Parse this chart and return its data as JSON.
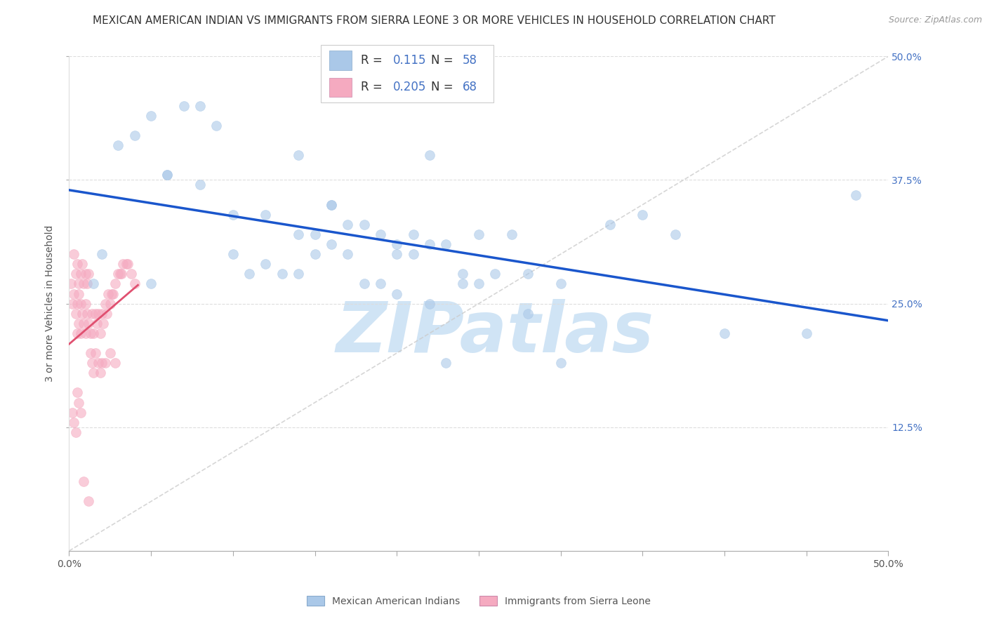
{
  "title": "MEXICAN AMERICAN INDIAN VS IMMIGRANTS FROM SIERRA LEONE 3 OR MORE VEHICLES IN HOUSEHOLD CORRELATION CHART",
  "source": "Source: ZipAtlas.com",
  "ylabel": "3 or more Vehicles in Household",
  "blue_R": "0.115",
  "blue_N": "58",
  "pink_R": "0.205",
  "pink_N": "68",
  "blue_color": "#aac8e8",
  "pink_color": "#f5aac0",
  "blue_line_color": "#1a56cc",
  "pink_line_color": "#e05070",
  "diag_line_color": "#cccccc",
  "watermark_text": "ZIPatlas",
  "watermark_color": "#d0e4f5",
  "legend_labels": [
    "Mexican American Indians",
    "Immigrants from Sierra Leone"
  ],
  "grid_color": "#dddddd",
  "title_color": "#333333",
  "source_color": "#999999",
  "ylabel_color": "#555555",
  "tick_color": "#555555",
  "right_tick_color": "#4472c4",
  "title_fontsize": 11,
  "source_fontsize": 9,
  "axis_label_fontsize": 10,
  "tick_fontsize": 10,
  "legend_fontsize": 12,
  "watermark_fontsize": 72,
  "scatter_size": 100,
  "scatter_alpha": 0.6,
  "blue_x": [
    0.015,
    0.02,
    0.03,
    0.04,
    0.05,
    0.06,
    0.07,
    0.08,
    0.09,
    0.1,
    0.11,
    0.12,
    0.13,
    0.14,
    0.15,
    0.16,
    0.17,
    0.18,
    0.19,
    0.2,
    0.21,
    0.22,
    0.23,
    0.24,
    0.25,
    0.27,
    0.28,
    0.3,
    0.33,
    0.35,
    0.37,
    0.4,
    0.45,
    0.48,
    0.05,
    0.06,
    0.08,
    0.1,
    0.12,
    0.14,
    0.16,
    0.18,
    0.2,
    0.22,
    0.24,
    0.26,
    0.28,
    0.3,
    0.22,
    0.23,
    0.14,
    0.15,
    0.16,
    0.17,
    0.19,
    0.2,
    0.21,
    0.25
  ],
  "blue_y": [
    0.27,
    0.3,
    0.41,
    0.42,
    0.44,
    0.38,
    0.45,
    0.45,
    0.43,
    0.3,
    0.28,
    0.29,
    0.28,
    0.28,
    0.3,
    0.31,
    0.33,
    0.27,
    0.32,
    0.31,
    0.3,
    0.31,
    0.31,
    0.28,
    0.27,
    0.32,
    0.24,
    0.27,
    0.33,
    0.34,
    0.32,
    0.22,
    0.22,
    0.36,
    0.27,
    0.38,
    0.37,
    0.34,
    0.34,
    0.4,
    0.35,
    0.33,
    0.3,
    0.4,
    0.27,
    0.28,
    0.28,
    0.19,
    0.25,
    0.19,
    0.32,
    0.32,
    0.35,
    0.3,
    0.27,
    0.26,
    0.32,
    0.32
  ],
  "pink_x": [
    0.001,
    0.002,
    0.003,
    0.004,
    0.005,
    0.005,
    0.006,
    0.006,
    0.007,
    0.007,
    0.008,
    0.009,
    0.01,
    0.01,
    0.011,
    0.012,
    0.013,
    0.014,
    0.015,
    0.016,
    0.017,
    0.018,
    0.019,
    0.02,
    0.021,
    0.022,
    0.023,
    0.024,
    0.025,
    0.026,
    0.027,
    0.028,
    0.03,
    0.031,
    0.032,
    0.033,
    0.035,
    0.036,
    0.038,
    0.04,
    0.003,
    0.004,
    0.005,
    0.006,
    0.007,
    0.008,
    0.009,
    0.01,
    0.011,
    0.012,
    0.013,
    0.014,
    0.015,
    0.016,
    0.018,
    0.019,
    0.02,
    0.022,
    0.025,
    0.028,
    0.002,
    0.003,
    0.004,
    0.005,
    0.006,
    0.007,
    0.009,
    0.012
  ],
  "pink_y": [
    0.27,
    0.25,
    0.26,
    0.24,
    0.22,
    0.25,
    0.23,
    0.26,
    0.22,
    0.25,
    0.24,
    0.23,
    0.25,
    0.22,
    0.24,
    0.23,
    0.22,
    0.24,
    0.22,
    0.24,
    0.23,
    0.24,
    0.22,
    0.24,
    0.23,
    0.25,
    0.24,
    0.26,
    0.25,
    0.26,
    0.26,
    0.27,
    0.28,
    0.28,
    0.28,
    0.29,
    0.29,
    0.29,
    0.28,
    0.27,
    0.3,
    0.28,
    0.29,
    0.27,
    0.28,
    0.29,
    0.27,
    0.28,
    0.27,
    0.28,
    0.2,
    0.19,
    0.18,
    0.2,
    0.19,
    0.18,
    0.19,
    0.19,
    0.2,
    0.19,
    0.14,
    0.13,
    0.12,
    0.16,
    0.15,
    0.14,
    0.07,
    0.05
  ]
}
